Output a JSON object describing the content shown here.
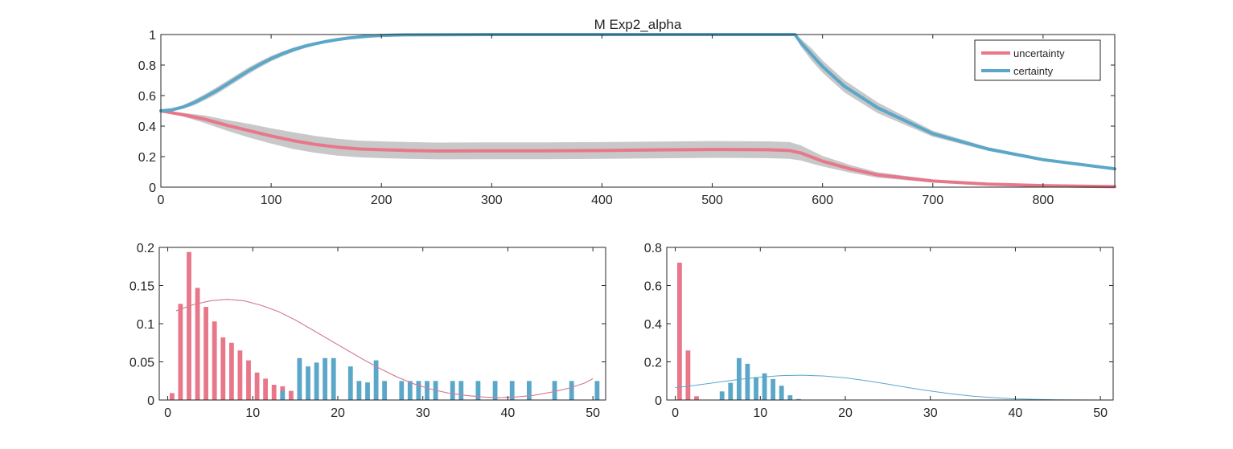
{
  "colors": {
    "uncertainty": "#e8778a",
    "certainty": "#5aa7c9",
    "band": "#c8c8c8",
    "axis": "#262626"
  },
  "chart_data": [
    {
      "id": "top",
      "type": "line",
      "title": "M  Exp2_alpha",
      "xlim": [
        0,
        865
      ],
      "ylim": [
        0,
        1
      ],
      "xticks": [
        0,
        100,
        200,
        300,
        400,
        500,
        600,
        700,
        800
      ],
      "yticks": [
        0,
        0.2,
        0.4,
        0.6,
        0.8,
        1
      ],
      "ytick_labels": [
        "0",
        "0.2",
        "0.4",
        "0.6",
        "0.8",
        "1"
      ],
      "legend_position": "top-right",
      "grid": false,
      "series": [
        {
          "name": "uncertainty",
          "x": [
            0,
            20,
            40,
            60,
            80,
            100,
            120,
            140,
            160,
            180,
            200,
            225,
            250,
            300,
            350,
            400,
            450,
            500,
            550,
            570,
            580,
            600,
            625,
            650,
            700,
            750,
            800,
            865
          ],
          "y": [
            0.5,
            0.475,
            0.445,
            0.405,
            0.37,
            0.335,
            0.305,
            0.28,
            0.262,
            0.25,
            0.245,
            0.24,
            0.237,
            0.238,
            0.238,
            0.24,
            0.244,
            0.247,
            0.245,
            0.24,
            0.225,
            0.17,
            0.12,
            0.08,
            0.04,
            0.02,
            0.01,
            0.003
          ],
          "band": [
            0.005,
            0.012,
            0.025,
            0.035,
            0.045,
            0.05,
            0.055,
            0.055,
            0.055,
            0.055,
            0.055,
            0.055,
            0.055,
            0.055,
            0.055,
            0.055,
            0.055,
            0.055,
            0.055,
            0.055,
            0.05,
            0.035,
            0.025,
            0.018,
            0.01,
            0.006,
            0.004,
            0.002
          ]
        },
        {
          "name": "certainty",
          "x": [
            0,
            10,
            20,
            30,
            40,
            50,
            60,
            70,
            80,
            90,
            100,
            110,
            120,
            130,
            140,
            150,
            160,
            170,
            180,
            190,
            200,
            220,
            250,
            300,
            400,
            500,
            575,
            580,
            590,
            600,
            620,
            650,
            700,
            750,
            800,
            865
          ],
          "y": [
            0.5,
            0.507,
            0.525,
            0.553,
            0.59,
            0.63,
            0.675,
            0.72,
            0.765,
            0.805,
            0.842,
            0.873,
            0.9,
            0.922,
            0.94,
            0.955,
            0.967,
            0.977,
            0.984,
            0.99,
            0.994,
            0.998,
            0.999,
            1,
            1,
            1,
            1,
            0.95,
            0.87,
            0.79,
            0.66,
            0.52,
            0.35,
            0.25,
            0.18,
            0.12
          ],
          "band": [
            0.005,
            0.008,
            0.012,
            0.018,
            0.02,
            0.022,
            0.022,
            0.022,
            0.022,
            0.02,
            0.018,
            0.016,
            0.014,
            0.012,
            0.01,
            0.008,
            0.006,
            0.004,
            0.003,
            0.002,
            0.002,
            0.001,
            0,
            0,
            0,
            0,
            0,
            0.025,
            0.04,
            0.04,
            0.04,
            0.035,
            0.02,
            0.012,
            0.008,
            0.005
          ]
        }
      ]
    },
    {
      "id": "bottom-left",
      "type": "bar",
      "xlim": [
        -1,
        51.5
      ],
      "ylim": [
        0,
        0.2
      ],
      "xticks": [
        0,
        10,
        20,
        30,
        40,
        50
      ],
      "yticks": [
        0,
        0.05,
        0.1,
        0.15,
        0.2
      ],
      "ytick_labels": [
        "0",
        "0.05",
        "0.1",
        "0.15",
        "0.2"
      ],
      "series": [
        {
          "name": "uncertainty",
          "x": [
            0.5,
            1.5,
            2.5,
            3.5,
            4.5,
            5.5,
            6.5,
            7.5,
            8.5,
            9.5,
            10.5,
            11.5,
            12.5,
            13.5,
            14.5,
            15.5,
            16.5
          ],
          "values": [
            0.009,
            0.126,
            0.194,
            0.147,
            0.122,
            0.103,
            0.082,
            0.075,
            0.065,
            0.052,
            0.036,
            0.028,
            0.02,
            0.018,
            0.012,
            0.008,
            0.004
          ]
        },
        {
          "name": "certainty",
          "x": [
            13.5,
            15.5,
            16.5,
            17.5,
            18.5,
            19.5,
            21.5,
            22.5,
            23.5,
            24.5,
            25.5,
            27.5,
            28.5,
            29.5,
            30.5,
            31.5,
            33.5,
            34.5,
            36.5,
            38.5,
            40.5,
            42.5,
            45.5,
            47.5,
            50.5
          ],
          "values": [
            0.012,
            0.055,
            0.044,
            0.049,
            0.055,
            0.055,
            0.044,
            0.025,
            0.023,
            0.052,
            0.025,
            0.025,
            0.025,
            0.025,
            0.025,
            0.025,
            0.025,
            0.025,
            0.025,
            0.025,
            0.025,
            0.025,
            0.025,
            0.025,
            0.025
          ]
        }
      ],
      "fits": [
        {
          "name": "certainty",
          "x": [
            1,
            3,
            5,
            7,
            9,
            11,
            13,
            15,
            17,
            19,
            21,
            23,
            25,
            27,
            29,
            31,
            33,
            35,
            37,
            39,
            41,
            43,
            45,
            47,
            49,
            50
          ],
          "y": [
            0.117,
            0.125,
            0.13,
            0.132,
            0.13,
            0.124,
            0.116,
            0.105,
            0.092,
            0.079,
            0.066,
            0.053,
            0.041,
            0.03,
            0.021,
            0.014,
            0.009,
            0.006,
            0.004,
            0.003,
            0.004,
            0.006,
            0.01,
            0.015,
            0.022,
            0.028
          ]
        },
        {
          "name": "uncertainty",
          "x": [
            1,
            3,
            5,
            7,
            9,
            11,
            13,
            15,
            17,
            19,
            21,
            23,
            25,
            27,
            29,
            31,
            33,
            35,
            37,
            39,
            41,
            43,
            45,
            47,
            49,
            50
          ],
          "y": [
            0.117,
            0.125,
            0.13,
            0.132,
            0.13,
            0.124,
            0.116,
            0.105,
            0.092,
            0.079,
            0.066,
            0.053,
            0.041,
            0.03,
            0.021,
            0.014,
            0.009,
            0.006,
            0.004,
            0.003,
            0.004,
            0.006,
            0.01,
            0.015,
            0.022,
            0.028
          ]
        }
      ]
    },
    {
      "id": "bottom-right",
      "type": "bar",
      "xlim": [
        -1,
        51.5
      ],
      "ylim": [
        0,
        0.8
      ],
      "xticks": [
        0,
        10,
        20,
        30,
        40,
        50
      ],
      "yticks": [
        0,
        0.2,
        0.4,
        0.6,
        0.8
      ],
      "ytick_labels": [
        "0",
        "0.2",
        "0.4",
        "0.6",
        "0.8"
      ],
      "series": [
        {
          "name": "uncertainty",
          "x": [
            0.5,
            1.5,
            2.5
          ],
          "values": [
            0.72,
            0.26,
            0.02
          ]
        },
        {
          "name": "certainty",
          "x": [
            5.5,
            6.5,
            7.5,
            8.5,
            9.5,
            10.5,
            11.5,
            12.5,
            13.5,
            14.5
          ],
          "values": [
            0.045,
            0.09,
            0.22,
            0.19,
            0.12,
            0.14,
            0.11,
            0.075,
            0.025,
            0.005
          ]
        }
      ],
      "fits": [
        {
          "name": "certainty",
          "x": [
            0,
            2.5,
            5,
            7.5,
            10,
            12.5,
            15,
            17.5,
            20,
            22.5,
            25,
            27.5,
            30,
            32.5,
            35,
            37.5,
            40,
            42.5,
            45,
            47.5,
            50
          ],
          "y": [
            0.065,
            0.078,
            0.093,
            0.108,
            0.12,
            0.128,
            0.13,
            0.126,
            0.116,
            0.101,
            0.083,
            0.064,
            0.047,
            0.032,
            0.02,
            0.012,
            0.006,
            0.003,
            0.001,
            0.0005,
            0
          ]
        }
      ]
    }
  ]
}
